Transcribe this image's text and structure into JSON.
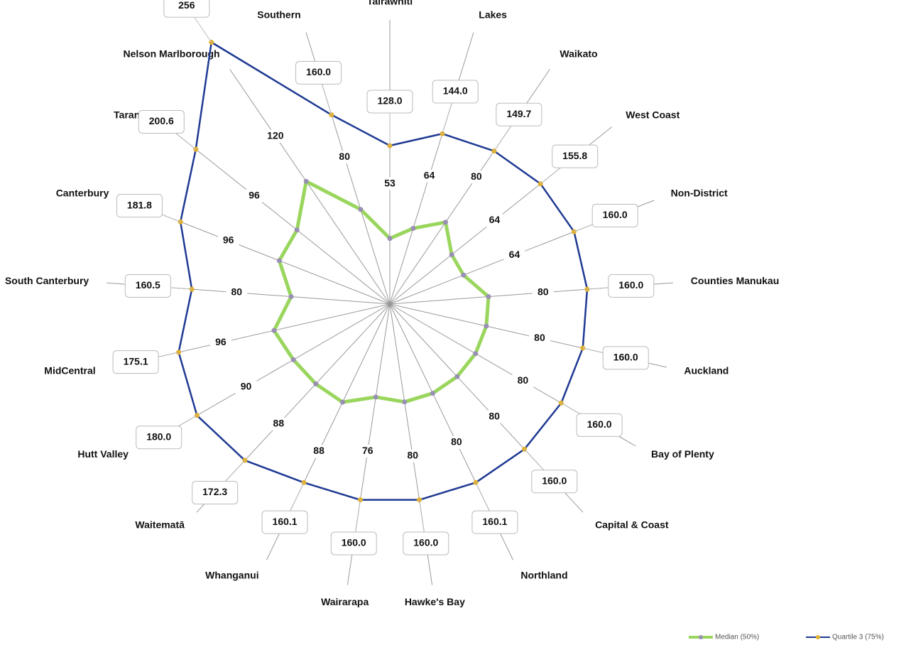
{
  "chart_data": {
    "type": "radar",
    "categories": [
      "Tairāwhiti",
      "Lakes",
      "Waikato",
      "West Coast",
      "Non-District",
      "Counties Manukau",
      "Auckland",
      "Bay of Plenty",
      "Capital & Coast",
      "Northland",
      "Hawke's Bay",
      "Wairarapa",
      "Whanganui",
      "Waitematā",
      "Hutt Valley",
      "MidCentral",
      "South Canterbury",
      "Canterbury",
      "Taranaki",
      "Nelson Marlborough",
      "Southern"
    ],
    "series": [
      {
        "name": "Median (50%)",
        "color": "#9ad65e",
        "marker_color": "#9a8fb5",
        "values": [
          53,
          64,
          80,
          64,
          64,
          80,
          80,
          80,
          80,
          80,
          80,
          76,
          88,
          88,
          90,
          96,
          80,
          96,
          96,
          120,
          80
        ]
      },
      {
        "name": "Quartile 3 (75%)",
        "color": "#1f3a93",
        "marker_color": "#e0b030",
        "values": [
          128.0,
          144.0,
          149.7,
          155.8,
          160.0,
          160.0,
          160.0,
          160.0,
          160.0,
          160.1,
          160.0,
          160.0,
          160.1,
          172.3,
          180.0,
          175.1,
          160.5,
          181.8,
          200.6,
          256,
          160.0
        ],
        "value_labels": [
          "128.0",
          "144.0",
          "149.7",
          "155.8",
          "160.0",
          "160.0",
          "160.0",
          "160.0",
          "160.0",
          "160.1",
          "160.0",
          "160.0",
          "160.1",
          "172.3",
          "180.0",
          "175.1",
          "160.5",
          "181.8",
          "200.6",
          "256",
          "160.0"
        ]
      }
    ],
    "rlim": [
      0,
      256
    ]
  }
}
